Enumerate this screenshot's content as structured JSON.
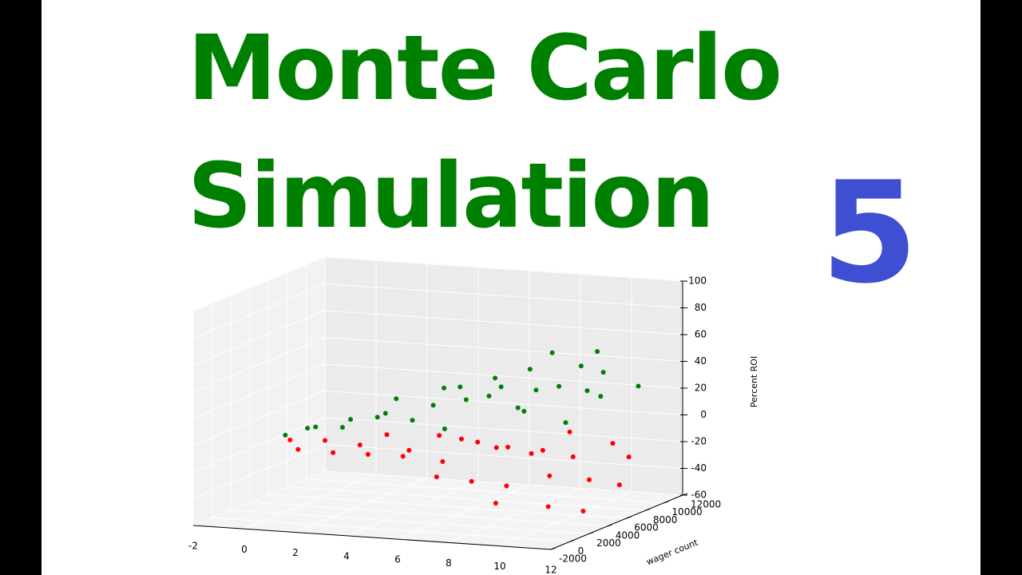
{
  "title_lines": [
    "Monte Carlo",
    "Simulation"
  ],
  "badge": "5",
  "chart_data": {
    "type": "scatter3d",
    "zlabel": "Percent ROI",
    "ylabel": "wager count",
    "xlim": [
      -2,
      12
    ],
    "ylim": [
      -2000,
      12000
    ],
    "zlim": [
      -60,
      100
    ],
    "xticks": [
      -2,
      0,
      2,
      4,
      6,
      8,
      10,
      12
    ],
    "yticks": [
      -2000,
      0,
      2000,
      4000,
      6000,
      8000,
      10000,
      12000
    ],
    "zticks": [
      -60,
      -40,
      -20,
      0,
      20,
      40,
      60,
      80,
      100
    ],
    "grid": true,
    "series": [
      {
        "color": "#008000",
        "x": [
          0.5,
          1,
          1.5,
          2,
          2.5,
          3,
          3,
          3.5,
          4,
          4.5,
          5,
          5,
          5.5,
          6,
          6,
          6.5,
          7,
          7,
          7.5,
          8,
          8,
          8.5,
          9,
          9,
          9.5,
          10,
          10,
          10.5,
          11,
          11
        ],
        "y": [
          1000,
          2000,
          1500,
          3000,
          2500,
          4000,
          6000,
          3500,
          5000,
          7000,
          4500,
          8000,
          6000,
          9000,
          3000,
          7000,
          5000,
          10000,
          8000,
          6000,
          9000,
          4000,
          7000,
          10000,
          8000,
          5000,
          9000,
          7000,
          10000,
          6000
        ],
        "z": [
          2,
          5,
          8,
          4,
          12,
          10,
          18,
          15,
          6,
          25,
          20,
          14,
          30,
          22,
          8,
          35,
          28,
          18,
          40,
          15,
          50,
          24,
          32,
          20,
          45,
          12,
          38,
          60,
          26,
          30
        ]
      },
      {
        "color": "#ff0000",
        "x": [
          0.5,
          1,
          1.5,
          2,
          2.5,
          3,
          3,
          3.5,
          4,
          4.5,
          5,
          5,
          5.5,
          6,
          6,
          6.5,
          7,
          7,
          7.5,
          8,
          8,
          8.5,
          9,
          9,
          9.5,
          10,
          10,
          10.5,
          11,
          11
        ],
        "y": [
          1500,
          1000,
          2500,
          2000,
          3500,
          3000,
          5000,
          6000,
          4000,
          6500,
          5500,
          7500,
          3500,
          8500,
          6500,
          4500,
          9500,
          7000,
          5500,
          8000,
          3000,
          9500,
          6000,
          8500,
          4500,
          10000,
          7500,
          5500,
          9000,
          8000
        ],
        "z": [
          -3,
          -8,
          -5,
          -12,
          -10,
          -15,
          -6,
          -20,
          -18,
          -9,
          -25,
          -14,
          -30,
          -22,
          -12,
          -35,
          -28,
          -16,
          -40,
          -20,
          -45,
          -10,
          -32,
          -25,
          -50,
          -18,
          -38,
          -55,
          -24,
          -42
        ]
      }
    ]
  }
}
